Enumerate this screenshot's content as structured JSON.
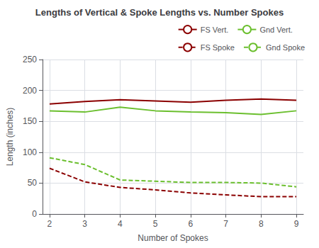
{
  "chart_data": {
    "type": "line",
    "title": "Lengths of Vertical & Spoke Lengths vs. Number Spokes",
    "xlabel": "Number of Spokes",
    "ylabel": "Length (inches)",
    "x": [
      2,
      3,
      4,
      5,
      6,
      7,
      8,
      9
    ],
    "series": [
      {
        "name": "FS Vert.",
        "color": "#8B0000",
        "line_style": "solid",
        "values": [
          178,
          182,
          185,
          183,
          181,
          184,
          186,
          184
        ]
      },
      {
        "name": "Gnd Vert.",
        "color": "#6BBF2E",
        "line_style": "solid",
        "values": [
          167,
          165,
          173,
          167,
          165,
          164,
          161,
          167
        ]
      },
      {
        "name": "FS Spoke",
        "color": "#8B0000",
        "line_style": "dashed",
        "values": [
          74,
          52,
          43,
          39,
          34,
          31,
          28,
          28
        ]
      },
      {
        "name": "Gnd Spoke",
        "color": "#6BBF2E",
        "line_style": "dashed",
        "values": [
          91,
          80,
          55,
          53,
          51,
          51,
          50,
          44
        ]
      }
    ],
    "xlim": [
      1.8,
      9.2
    ],
    "xticks": [
      2,
      3,
      4,
      5,
      6,
      7,
      8,
      9
    ],
    "ylim": [
      0,
      250
    ],
    "yticks": [
      0,
      50,
      100,
      150,
      200,
      250
    ],
    "grid": true,
    "legend": "upper right"
  }
}
